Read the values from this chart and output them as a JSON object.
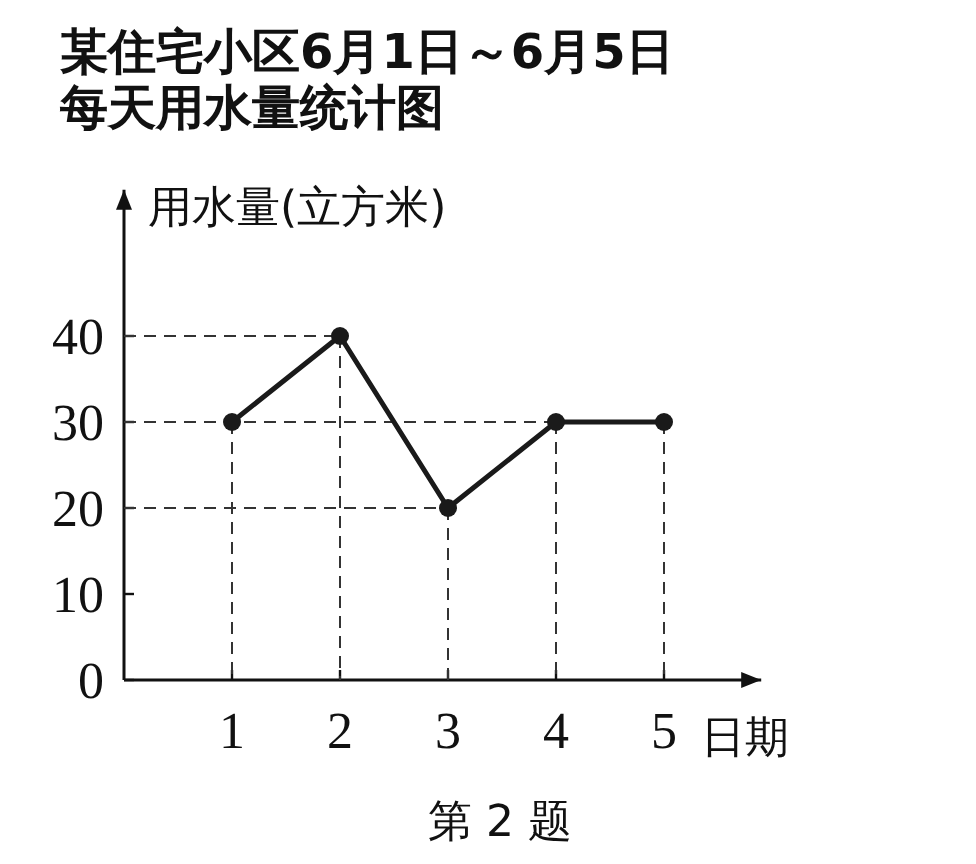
{
  "chart_data": {
    "type": "line",
    "title": "某住宅小区6月1日～6月5日",
    "subtitle": "每天用水量统计图",
    "ylabel": "用水量(立方米)",
    "xlabel": "日期",
    "x": [
      1,
      2,
      3,
      4,
      5
    ],
    "series": [
      {
        "color": "#1a1a1a",
        "values": [
          30,
          40,
          20,
          30,
          30
        ]
      }
    ],
    "xlim": [
      0,
      5.9
    ],
    "ylim": [
      0,
      57
    ],
    "xticks": [
      1,
      2,
      3,
      4,
      5
    ],
    "yticks": [
      0,
      10,
      20,
      30,
      40
    ],
    "marker": "circle",
    "line_style": "solid",
    "grid": "x",
    "ref_lines": [
      {
        "axis": "y",
        "value": 40,
        "line_style": "dashed"
      },
      {
        "axis": "y",
        "value": 30,
        "line_style": "dashed"
      },
      {
        "axis": "y",
        "value": 20,
        "line_style": "dashed"
      }
    ],
    "annotations": [
      "第 2 题"
    ]
  }
}
